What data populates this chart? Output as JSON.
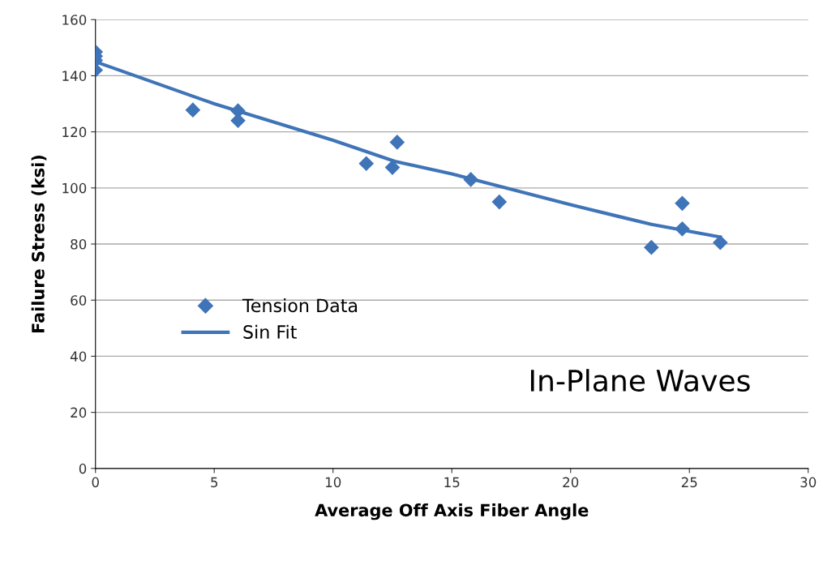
{
  "chart_data": {
    "type": "scatter",
    "xlabel": "Average Off Axis Fiber Angle",
    "ylabel": "Failure Stress (ksi)",
    "xlim": [
      0,
      30
    ],
    "xticks": [
      0,
      5,
      10,
      15,
      20,
      25,
      30
    ],
    "ylim": [
      0,
      160
    ],
    "yticks": [
      0,
      20,
      40,
      60,
      80,
      100,
      120,
      140,
      160
    ],
    "grid": "y",
    "legend": "center left",
    "annotations": [
      "In-Plane Waves"
    ],
    "series": [
      {
        "name": "Tension Data",
        "marker": "diamond",
        "color": "#3f74b8",
        "x": [
          0,
          0,
          0,
          0,
          4.1,
          6.0,
          6.0,
          11.4,
          12.5,
          12.7,
          15.8,
          17.0,
          23.4,
          24.7,
          24.7,
          26.3
        ],
        "values": [
          148.5,
          147,
          145.5,
          142,
          127.8,
          127.5,
          124,
          108.7,
          107.3,
          116.3,
          103,
          95,
          78.8,
          94.5,
          85.4,
          80.5
        ]
      },
      {
        "name": "Sin Fit",
        "type": "line",
        "marker": "none",
        "color": "#3f74b8",
        "x": [
          0,
          5,
          10,
          12.6,
          15,
          20,
          23.4,
          24.7,
          26.3
        ],
        "values": [
          145,
          130,
          117,
          109.5,
          105,
          94,
          87,
          85,
          82.5
        ]
      }
    ]
  }
}
